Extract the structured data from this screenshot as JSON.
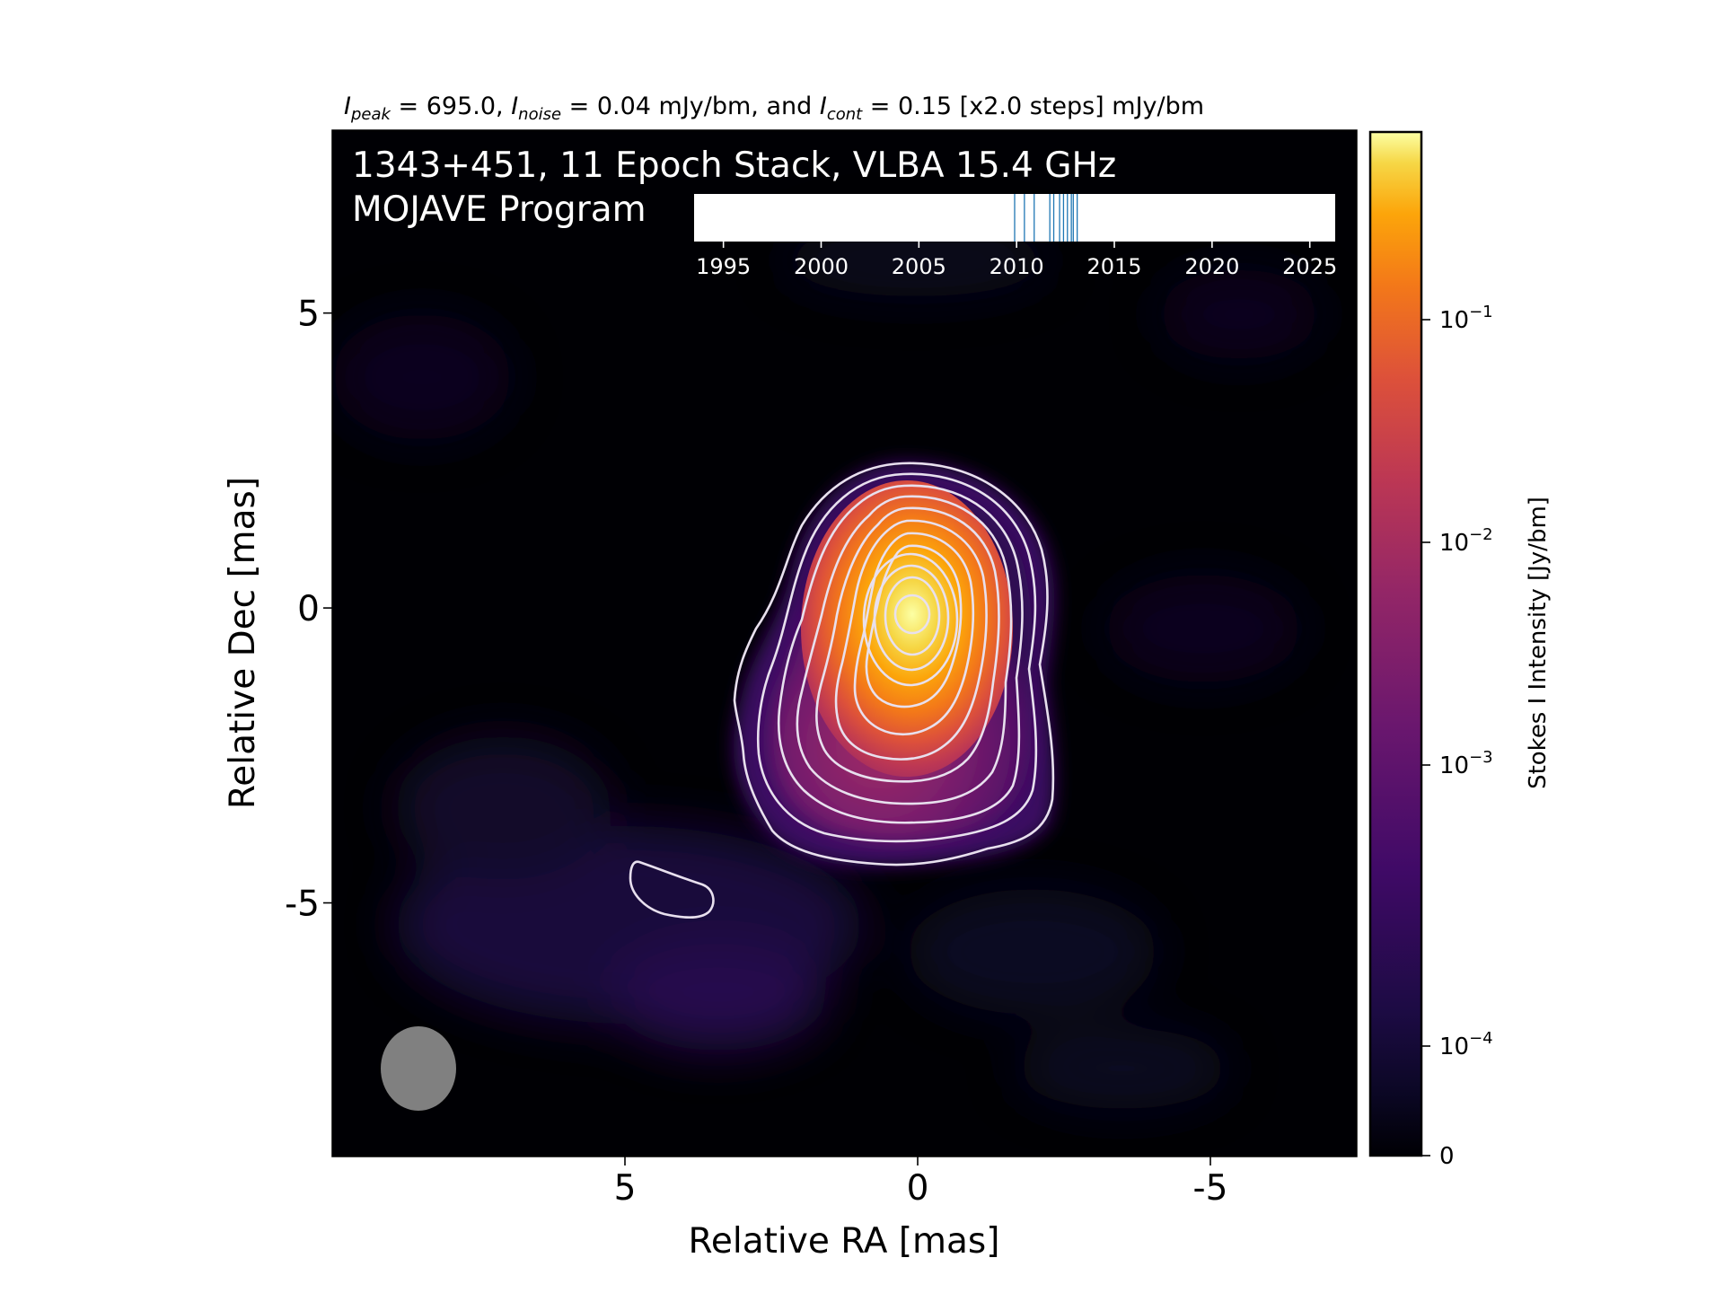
{
  "figure": {
    "header": {
      "peak_sym": "I",
      "peak_sub": "peak",
      "peak_rest": " = 695.0, ",
      "noise_sym": "I",
      "noise_sub": "noise",
      "noise_rest": " = 0.04 mJy/bm, and ",
      "cont_sym": "I",
      "cont_sub": "cont",
      "cont_rest": " = 0.15 [x2.0 steps] mJy/bm"
    },
    "overlay_line1": "1343+451, 11 Epoch Stack, VLBA 15.4 GHz",
    "overlay_line2": "MOJAVE Program"
  },
  "colors": {
    "background": "#000004",
    "contour": "#e8e0ee",
    "beam": "#808080",
    "epoch_marker": "#1f77b4",
    "colormap": "inferno"
  },
  "chart_data": {
    "type": "heatmap",
    "source": "1343+451",
    "xlabel": "Relative RA [mas]",
    "ylabel": "Relative Dec [mas]",
    "xlim": [
      10,
      -7.5
    ],
    "ylim": [
      -9.3,
      8.1
    ],
    "x_ticks": [
      {
        "value": 5,
        "label": "5"
      },
      {
        "value": 0,
        "label": "0"
      },
      {
        "value": -5,
        "label": "-5"
      }
    ],
    "y_ticks": [
      {
        "value": 5,
        "label": "5"
      },
      {
        "value": 0,
        "label": "0"
      },
      {
        "value": -5,
        "label": "-5"
      }
    ],
    "peak_jy_per_beam": 0.695,
    "noise_mjy_per_beam": 0.04,
    "lowest_contour_mjy_per_beam": 0.15,
    "contour_step_factor": 2.0,
    "beam_ellipse_mas": {
      "center": [
        8.3,
        -7.8
      ],
      "major": 1.45,
      "minor": 1.3,
      "pa_deg": 0
    },
    "colorbar": {
      "label": "Stokes I Intensity [Jy/bm]",
      "scale": "log",
      "ticks": [
        {
          "value": 0.1,
          "base": "10",
          "exp": "−1"
        },
        {
          "value": 0.01,
          "base": "10",
          "exp": "−2"
        },
        {
          "value": 0.001,
          "base": "10",
          "exp": "−3"
        },
        {
          "value": 0.0001,
          "base": "10",
          "exp": "−4"
        },
        {
          "value": 0,
          "base": "0",
          "exp": ""
        }
      ]
    },
    "epoch_timeline": {
      "xlim": [
        1993.5,
        2026.3
      ],
      "ticks": [
        1995,
        2000,
        2005,
        2010,
        2015,
        2020,
        2025
      ],
      "epochs": [
        2009.9,
        2010.4,
        2010.9,
        2011.7,
        2011.9,
        2012.2,
        2012.4,
        2012.6,
        2012.8,
        2012.9,
        2013.1
      ]
    }
  }
}
